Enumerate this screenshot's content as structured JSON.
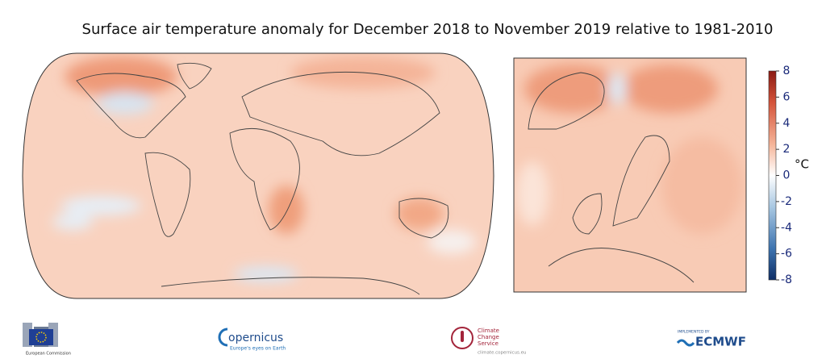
{
  "title": "Surface air temperature anomaly for December 2018 to November 2019 relative to 1981-2010",
  "colorbar": {
    "ticks": [
      8,
      6,
      4,
      2,
      0,
      -2,
      -4,
      -6,
      -8
    ],
    "unit": "°C"
  },
  "logos": {
    "european_commission": "European Commission",
    "copernicus": {
      "name": "opernicus",
      "tagline": "Europe's eyes on Earth"
    },
    "c3s": {
      "name": "Climate Change Service",
      "url": "climate.copernicus.eu"
    },
    "ecmwf": {
      "prefix": "IMPLEMENTED BY",
      "name": "ECMWF"
    }
  }
}
